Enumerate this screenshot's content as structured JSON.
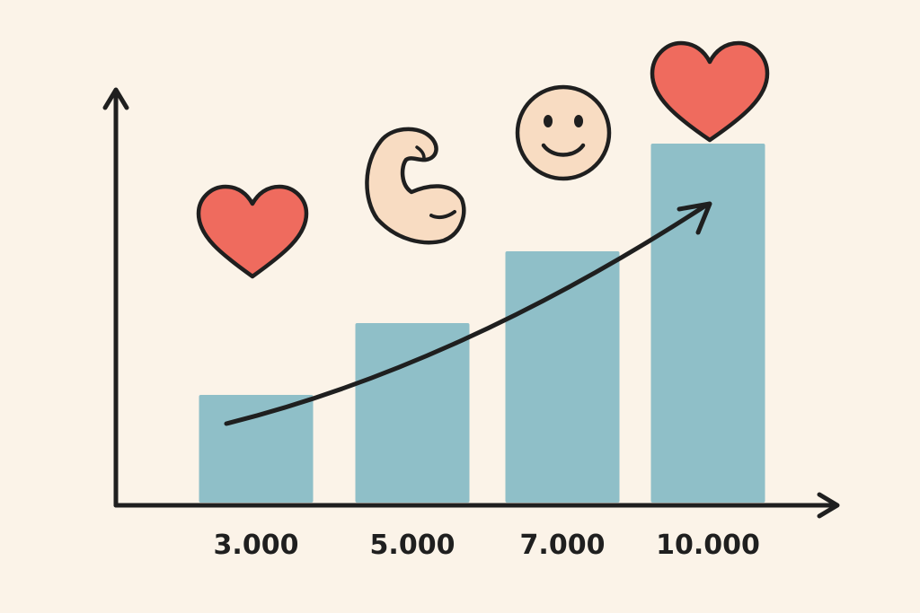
{
  "chart_data": {
    "type": "bar",
    "categories": [
      "3.000",
      "5.000",
      "7.000",
      "10.000"
    ],
    "values": [
      3000,
      5000,
      7000,
      10000
    ],
    "title": "",
    "xlabel": "",
    "ylabel": "",
    "ylim": [
      0,
      12000
    ],
    "grid": false,
    "legend": "none",
    "trend_arrow": true,
    "icons": [
      "heart-icon",
      "flexed-bicep-icon",
      "smiley-face-icon",
      "heart-icon"
    ]
  },
  "colors": {
    "background": "#fbf3e8",
    "bar": "#8fbfc8",
    "axis": "#1f1f1f",
    "heart": "#ef6b5e",
    "arm": "#f8dcc2",
    "smiley": "#f8dcc2"
  }
}
